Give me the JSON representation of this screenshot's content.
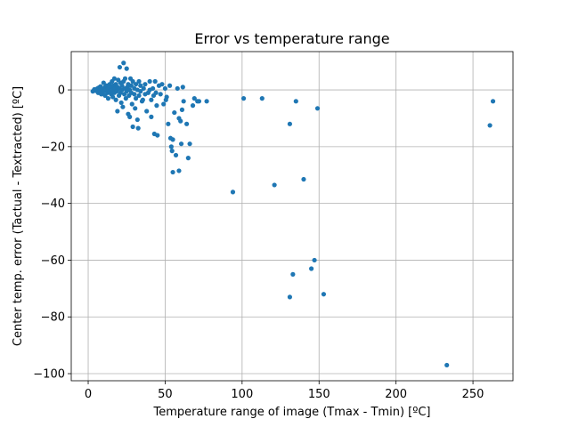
{
  "chart_data": {
    "type": "scatter",
    "title": "Error vs temperature range",
    "xlabel": "Temperature range of image (Tmax - Tmin) [ºC]",
    "ylabel": "Center temp. error (Tactual - Textracted) [ºC]",
    "xlim": [
      -11,
      276
    ],
    "ylim": [
      -102.5,
      13.5
    ],
    "xticks": [
      0,
      50,
      100,
      150,
      200,
      250
    ],
    "yticks": [
      -100,
      -80,
      -60,
      -40,
      -20,
      0
    ],
    "xtick_labels": [
      "0",
      "50",
      "100",
      "150",
      "200",
      "250"
    ],
    "ytick_labels": [
      "−100",
      "−80",
      "−60",
      "−40",
      "−20",
      "0"
    ],
    "grid": true,
    "marker_color": "#1f77b4",
    "series": [
      {
        "points": [
          [
            3,
            -0.5
          ],
          [
            4,
            0.2
          ],
          [
            5,
            -0.3
          ],
          [
            6,
            0.5
          ],
          [
            6.5,
            -1
          ],
          [
            7,
            0.8
          ],
          [
            7.5,
            -0.2
          ],
          [
            8,
            1.2
          ],
          [
            8.5,
            -1.5
          ],
          [
            9,
            0.3
          ],
          [
            9.5,
            -0.8
          ],
          [
            10,
            2.5
          ],
          [
            10,
            -0.5
          ],
          [
            11,
            1
          ],
          [
            11,
            -2
          ],
          [
            12,
            0
          ],
          [
            12,
            1.5
          ],
          [
            12.5,
            -1
          ],
          [
            13,
            0.5
          ],
          [
            13,
            -3
          ],
          [
            14,
            2
          ],
          [
            14,
            -0.5
          ],
          [
            15,
            1
          ],
          [
            15,
            -1.5
          ],
          [
            15.5,
            3
          ],
          [
            16,
            0
          ],
          [
            16,
            -2.5
          ],
          [
            16.5,
            1.5
          ],
          [
            17,
            -1
          ],
          [
            17,
            4
          ],
          [
            17.5,
            0.5
          ],
          [
            18,
            -3.5
          ],
          [
            18,
            2
          ],
          [
            18.5,
            -0.5
          ],
          [
            19,
            1
          ],
          [
            19,
            -7.5
          ],
          [
            19.5,
            3.5
          ],
          [
            20,
            -2
          ],
          [
            20,
            0.5
          ],
          [
            20.5,
            8
          ],
          [
            21,
            -1
          ],
          [
            21,
            2.5
          ],
          [
            21.5,
            -4.5
          ],
          [
            22,
            0
          ],
          [
            22,
            1.5
          ],
          [
            22.5,
            -6
          ],
          [
            23,
            3
          ],
          [
            23,
            9.5
          ],
          [
            23.5,
            -1.5
          ],
          [
            24,
            0.5
          ],
          [
            24,
            4
          ],
          [
            24.5,
            -3
          ],
          [
            25,
            7.5
          ],
          [
            25,
            -0.5
          ],
          [
            25.5,
            1
          ],
          [
            26,
            -8.5
          ],
          [
            26,
            2
          ],
          [
            26.5,
            -2
          ],
          [
            27,
            0
          ],
          [
            27,
            -9.5
          ],
          [
            27.5,
            4
          ],
          [
            28,
            -1
          ],
          [
            28,
            1.5
          ],
          [
            28.5,
            -5
          ],
          [
            29,
            -13
          ],
          [
            29,
            3
          ],
          [
            30,
            -1.5
          ],
          [
            30,
            0.5
          ],
          [
            30.5,
            -6.5
          ],
          [
            31,
            2
          ],
          [
            31,
            -3
          ],
          [
            32,
            0
          ],
          [
            32,
            -10.5
          ],
          [
            32.5,
            -13.5
          ],
          [
            33,
            3
          ],
          [
            33,
            -2
          ],
          [
            34,
            -0.5
          ],
          [
            34,
            1.5
          ],
          [
            35,
            -4
          ],
          [
            35.5,
            -3.5
          ],
          [
            36,
            0.5
          ],
          [
            37,
            2
          ],
          [
            37,
            -1.5
          ],
          [
            38,
            -7.5
          ],
          [
            39,
            -1
          ],
          [
            40,
            3
          ],
          [
            40,
            0
          ],
          [
            41,
            -3.5
          ],
          [
            41,
            -9.5
          ],
          [
            42,
            0.5
          ],
          [
            42.5,
            -2
          ],
          [
            43,
            -15.5
          ],
          [
            43.5,
            3
          ],
          [
            44,
            -1
          ],
          [
            44.5,
            -5.5
          ],
          [
            45,
            -16
          ],
          [
            46,
            1.5
          ],
          [
            47,
            -1.5
          ],
          [
            48,
            2
          ],
          [
            49,
            -5
          ],
          [
            50,
            0.5
          ],
          [
            50.5,
            -3.5
          ],
          [
            51,
            -2.5
          ],
          [
            52,
            -12
          ],
          [
            53,
            1.5
          ],
          [
            53.5,
            -17
          ],
          [
            54,
            -20
          ],
          [
            54.5,
            -21.5
          ],
          [
            55,
            -29
          ],
          [
            55,
            -17.5
          ],
          [
            56,
            -8
          ],
          [
            57,
            -23
          ],
          [
            58,
            0.5
          ],
          [
            59,
            -28.5
          ],
          [
            59,
            -10
          ],
          [
            60,
            -11
          ],
          [
            60.5,
            -19
          ],
          [
            61,
            -7
          ],
          [
            61.5,
            1
          ],
          [
            62,
            -4
          ],
          [
            64,
            -12
          ],
          [
            65,
            -24
          ],
          [
            66,
            -19
          ],
          [
            68,
            -5.5
          ],
          [
            69,
            -3
          ],
          [
            71,
            -4
          ],
          [
            72,
            -4
          ],
          [
            77,
            -4
          ],
          [
            94,
            -36
          ],
          [
            101,
            -3
          ],
          [
            113,
            -3
          ],
          [
            121,
            -33.5
          ],
          [
            131,
            -12
          ],
          [
            131,
            -73
          ],
          [
            133,
            -65
          ],
          [
            135,
            -4
          ],
          [
            140,
            -31.5
          ],
          [
            145,
            -63
          ],
          [
            147,
            -60
          ],
          [
            149,
            -6.5
          ],
          [
            153,
            -72
          ],
          [
            233,
            -97
          ],
          [
            261,
            -12.5
          ],
          [
            263,
            -4
          ]
        ]
      }
    ]
  }
}
